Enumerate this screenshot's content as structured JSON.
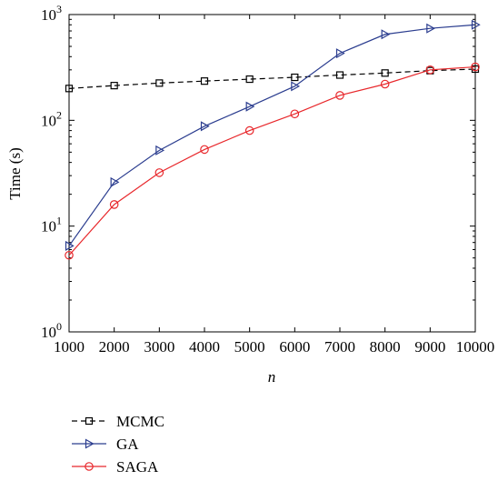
{
  "chart_data": {
    "type": "line",
    "xlabel": "n",
    "ylabel": "Time (s)",
    "yscale": "log",
    "xlim": [
      1000,
      10000
    ],
    "ylim": [
      1,
      1000
    ],
    "grid": false,
    "legend_position": "bottom",
    "x": [
      1000,
      2000,
      3000,
      4000,
      5000,
      6000,
      7000,
      8000,
      9000,
      10000
    ],
    "x_tick_labels": [
      "1000",
      "2000",
      "3000",
      "4000",
      "5000",
      "6000",
      "7000",
      "8000",
      "9000",
      "10000"
    ],
    "y_ticks": [
      {
        "value": 1,
        "base": "10",
        "exp": "0"
      },
      {
        "value": 10,
        "base": "10",
        "exp": "1"
      },
      {
        "value": 100,
        "base": "10",
        "exp": "2"
      },
      {
        "value": 1000,
        "base": "10",
        "exp": "3"
      }
    ],
    "series": [
      {
        "name": "MCMC",
        "color": "#000000",
        "marker": "square",
        "line_style": "dashed",
        "values": [
          200,
          213,
          225,
          235,
          245,
          255,
          268,
          280,
          295,
          305
        ]
      },
      {
        "name": "GA",
        "color": "#2b3d8f",
        "marker": "triangle-right",
        "line_style": "solid",
        "values": [
          6.5,
          26,
          52,
          88,
          135,
          210,
          430,
          650,
          740,
          800
        ]
      },
      {
        "name": "SAGA",
        "color": "#e8282c",
        "marker": "circle",
        "line_style": "solid",
        "values": [
          5.3,
          16,
          32,
          53,
          80,
          115,
          172,
          220,
          300,
          320
        ]
      }
    ]
  }
}
